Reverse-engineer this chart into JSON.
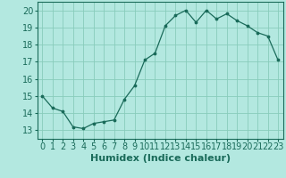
{
  "title": "",
  "xlabel": "Humidex (Indice chaleur)",
  "x": [
    0,
    1,
    2,
    3,
    4,
    5,
    6,
    7,
    8,
    9,
    10,
    11,
    12,
    13,
    14,
    15,
    16,
    17,
    18,
    19,
    20,
    21,
    22,
    23
  ],
  "y": [
    15.0,
    14.3,
    14.1,
    13.2,
    13.1,
    13.4,
    13.5,
    13.6,
    14.8,
    15.6,
    17.1,
    17.5,
    19.1,
    19.7,
    20.0,
    19.3,
    20.0,
    19.5,
    19.8,
    19.4,
    19.1,
    18.7,
    18.5,
    17.1
  ],
  "ylim": [
    12.5,
    20.5
  ],
  "yticks": [
    13,
    14,
    15,
    16,
    17,
    18,
    19,
    20
  ],
  "xlim": [
    -0.5,
    23.5
  ],
  "xticks": [
    0,
    1,
    2,
    3,
    4,
    5,
    6,
    7,
    8,
    9,
    10,
    11,
    12,
    13,
    14,
    15,
    16,
    17,
    18,
    19,
    20,
    21,
    22,
    23
  ],
  "line_color": "#1a6b5a",
  "marker_color": "#1a6b5a",
  "bg_color": "#b3e8e0",
  "grid_color": "#88ccbb",
  "axes_color": "#1a6b5a",
  "tick_fontsize": 7,
  "xlabel_fontsize": 8
}
